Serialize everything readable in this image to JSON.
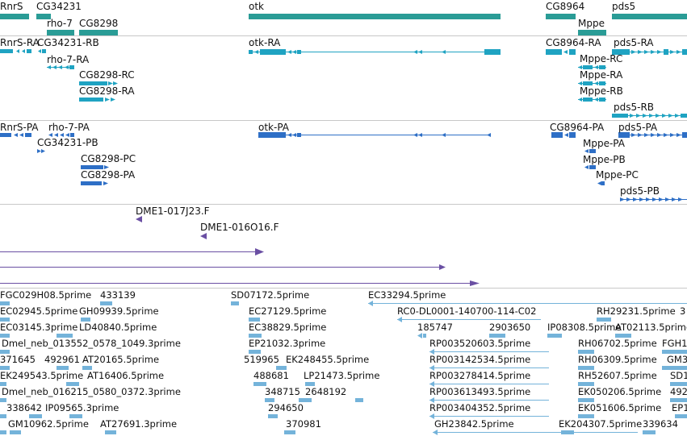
{
  "tracks": {
    "genes": {
      "labels": [
        "RnrS",
        "CG34231",
        "rho-7",
        "CG8298",
        "otk",
        "CG8964",
        "Mppe",
        "pds5"
      ],
      "color": "#2a9c96"
    },
    "transcripts": {
      "labels": [
        "RnrS-RA",
        "CG34231-RB",
        "rho-7-RA",
        "CG8298-RC",
        "CG8298-RA",
        "otk-RA",
        "CG8964-RA",
        "pds5-RA",
        "Mppe-RC",
        "Mppe-RA",
        "Mppe-RB",
        "pds5-RB"
      ],
      "color": "#1fa3c2"
    },
    "proteins": {
      "labels": [
        "RnrS-PA",
        "rho-7-PA",
        "CG34231-PB",
        "CG8298-PC",
        "CG8298-PA",
        "otk-PA",
        "CG8964-PA",
        "pds5-PA",
        "Mppe-PA",
        "Mppe-PB",
        "Mppe-PC",
        "pds5-PB"
      ],
      "color": "#2e6fc6"
    },
    "clones": {
      "labels": [
        "DME1-017J23.F",
        "DME1-016O16.F"
      ],
      "color": "#6a4fa3"
    },
    "ests": {
      "labels": [
        "FGC029H08.5prime",
        "433139",
        "SD07172.5prime",
        "EC33294.5prime",
        "EC02945.5prime",
        "GH09939.5prime",
        "EC27129.5prime",
        "RC0-DL0001-140700-114-C02",
        "RH29231.5prime",
        "3",
        "EC03145.3prime",
        "LD40840.5prime",
        "EC38829.5prime",
        "185747",
        "2903650",
        "IP08308.5prime",
        "AT02113.5prime",
        "Dmel_neb_013552_0578_1049.3prime",
        "EP21032.3prime",
        "RP003520603.5prime",
        "RH06702.5prime",
        "FGH1",
        "371645",
        "492961",
        "AT20165.5prime",
        "519965",
        "EK248455.5prime",
        "RP003142534.5prime",
        "RH06309.5prime",
        "GM3",
        "EK249543.5prime",
        "AT16406.5prime",
        "488681",
        "LP21473.5prime",
        "RP003278414.5prime",
        "RH52607.5prime",
        "SD1",
        "Dmel_neb_016215_0580_0372.3prime",
        "348715",
        "2648192",
        "RP003613493.5prime",
        "EK050206.5prime",
        "492",
        "338642",
        "IP09565.3prime",
        "294650",
        "RP003404352.5prime",
        "EK051606.5prime",
        "EP1",
        "GM10962.5prime",
        "AT27691.3prime",
        "370981",
        "GH23842.5prime",
        "EK204307.5prime",
        "339634"
      ],
      "color": "#74b3da"
    }
  }
}
